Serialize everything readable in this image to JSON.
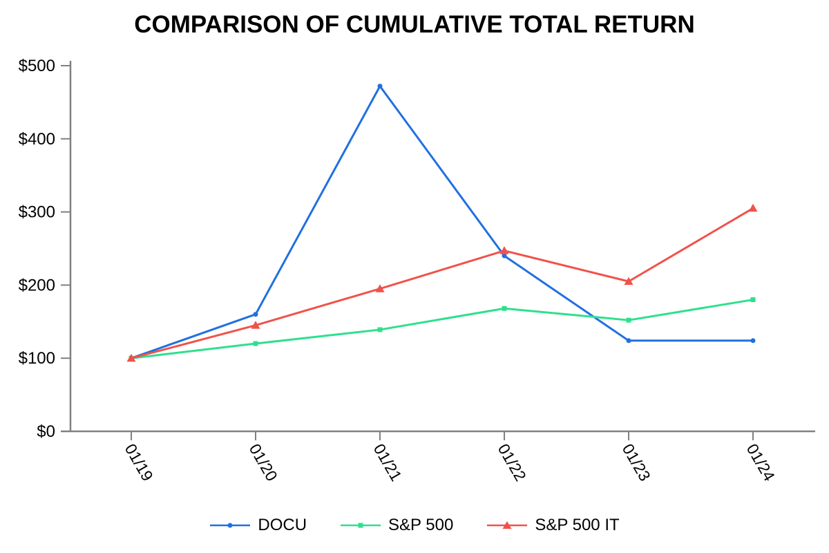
{
  "chart_data": {
    "type": "line",
    "title": "COMPARISON OF CUMULATIVE TOTAL RETURN",
    "categories": [
      "01/19",
      "01/20",
      "01/21",
      "01/22",
      "01/23",
      "01/24"
    ],
    "series": [
      {
        "name": "DOCU",
        "color": "#2070e0",
        "marker": "circle",
        "values": [
          100,
          160,
          472,
          240,
          124,
          124
        ]
      },
      {
        "name": "S&P 500",
        "color": "#2ee08d",
        "marker": "square",
        "values": [
          100,
          120,
          139,
          168,
          152,
          180
        ]
      },
      {
        "name": "S&P 500 IT",
        "color": "#f0524a",
        "marker": "triangle",
        "values": [
          100,
          145,
          195,
          247,
          205,
          305
        ]
      }
    ],
    "y_axis": {
      "tick_labels": [
        "$0",
        "$100",
        "$200",
        "$300",
        "$400",
        "$500"
      ],
      "tick_values": [
        0,
        100,
        200,
        300,
        400,
        500
      ],
      "ylim": [
        0,
        500
      ]
    },
    "x_axis": {
      "tick_rotation_deg": 60
    },
    "axis_color": "#808080",
    "text_color": "#000000",
    "grid": false,
    "legend_position": "bottom"
  }
}
